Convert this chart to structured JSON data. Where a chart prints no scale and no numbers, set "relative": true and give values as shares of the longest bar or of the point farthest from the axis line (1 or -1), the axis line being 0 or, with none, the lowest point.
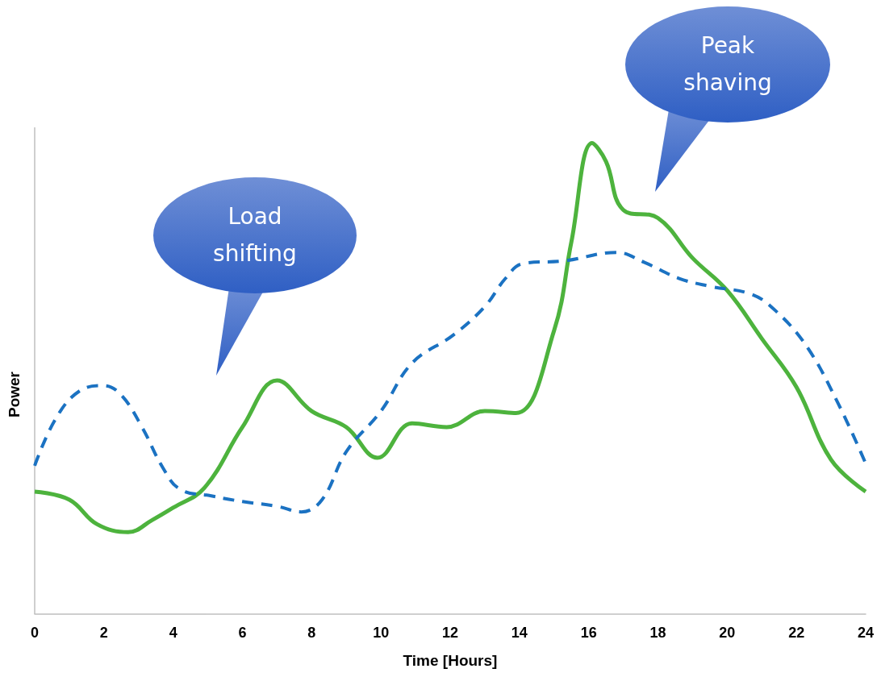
{
  "chart_data": {
    "type": "line",
    "relative": true,
    "xlabel": "Time [Hours]",
    "ylabel": "Power",
    "xlim": [
      0,
      24
    ],
    "xticks": [
      0,
      2,
      4,
      6,
      8,
      10,
      12,
      14,
      16,
      18,
      20,
      22,
      24
    ],
    "grid": false,
    "marker": "none",
    "annotations": [
      "Load shifting",
      "Peak shaving"
    ],
    "series": [
      {
        "color": "#4db33d",
        "line_style": "solid",
        "x": [
          0,
          1.0,
          1.8,
          2.7,
          3.4,
          4.0,
          4.9,
          6.0,
          7.0,
          8.0,
          9.0,
          9.9,
          10.9,
          11.9,
          13.0,
          13.9,
          15.0,
          15.5,
          16.1,
          16.5,
          17.0,
          18.0,
          19.0,
          20.0,
          21.0,
          22.0,
          23.0,
          24
        ],
        "values": [
          0.26,
          0.243,
          0.191,
          0.174,
          0.2,
          0.226,
          0.268,
          0.397,
          0.496,
          0.431,
          0.397,
          0.332,
          0.405,
          0.397,
          0.431,
          0.427,
          0.602,
          0.79,
          1,
          0.961,
          0.858,
          0.841,
          0.756,
          0.687,
          0.585,
          0.482,
          0.328,
          0.26
        ]
      },
      {
        "color": "#1b72c2",
        "line_style": "dashed",
        "x": [
          0,
          0.6,
          1.3,
          2.0,
          2.5,
          3.1,
          3.7,
          4.2,
          5.1,
          6.0,
          7.0,
          7.7,
          8.3,
          9.0,
          10.0,
          10.9,
          12.1,
          13.0,
          13.6,
          14.1,
          15.3,
          16.8,
          17.6,
          18.6,
          19.5,
          20.7,
          21.4,
          22.3,
          23.2,
          24
        ],
        "values": [
          0.315,
          0.414,
          0.474,
          0.485,
          0.465,
          0.397,
          0.311,
          0.265,
          0.251,
          0.239,
          0.229,
          0.217,
          0.243,
          0.345,
          0.431,
          0.533,
          0.593,
          0.653,
          0.713,
          0.744,
          0.75,
          0.768,
          0.747,
          0.713,
          0.696,
          0.679,
          0.644,
          0.568,
          0.448,
          0.32
        ]
      }
    ]
  }
}
